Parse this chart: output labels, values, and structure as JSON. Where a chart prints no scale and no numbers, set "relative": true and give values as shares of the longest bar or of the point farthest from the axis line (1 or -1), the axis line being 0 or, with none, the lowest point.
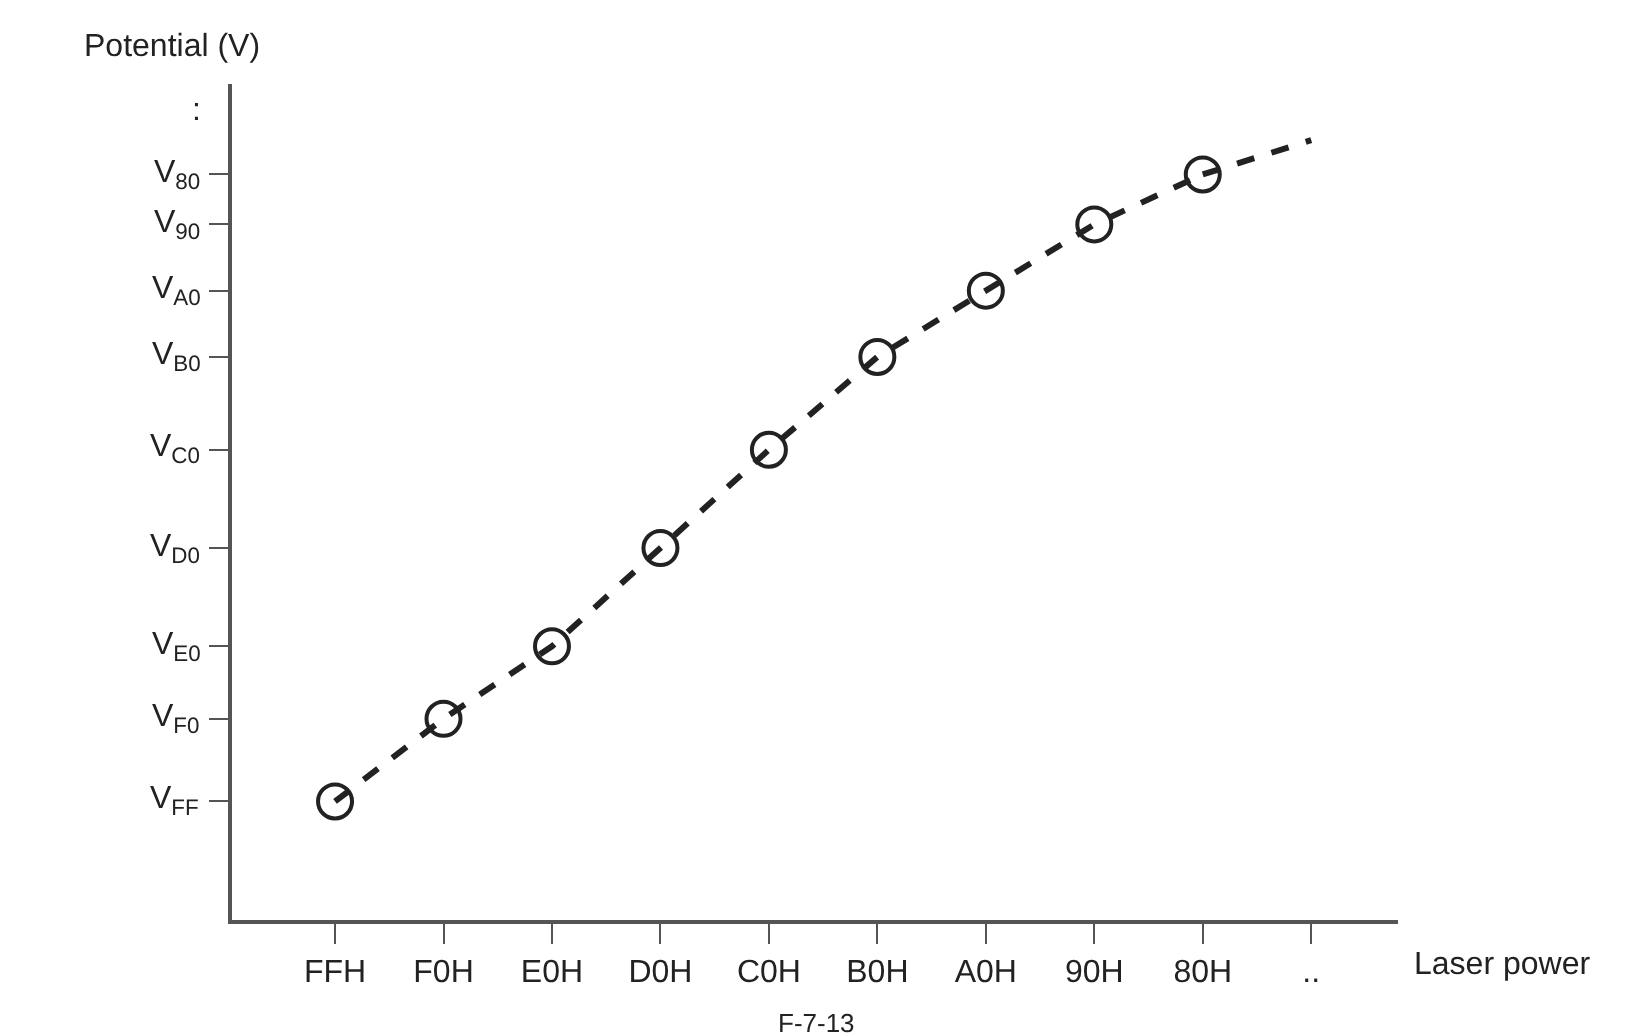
{
  "chart_data": {
    "type": "line",
    "xlabel": "Laser power",
    "ylabel": "Potential (V)",
    "relative": true,
    "categories": [
      "FFH",
      "F0H",
      "E0H",
      "D0H",
      "C0H",
      "B0H",
      "A0H",
      "90H",
      "80H",
      ".."
    ],
    "series": [
      {
        "color": "#222222",
        "values": [
          0.152,
          0.258,
          0.351,
          0.477,
          0.603,
          0.722,
          0.807,
          0.892,
          0.956,
          null
        ],
        "marker": "circle",
        "line_style": "dashed"
      },
      {
        "color": "#222222",
        "values": [
          null,
          null,
          null,
          null,
          null,
          null,
          null,
          null,
          0.956,
          1
        ],
        "marker": "none",
        "line_style": "dashed"
      }
    ],
    "annotations": [
      "V$_{FF}$",
      "V$_{F0}$",
      "V$_{E0}$",
      "V$_{D0}$",
      "V$_{C0}$",
      "V$_{B0}$",
      "V$_{A0}$",
      "V$_{90}$",
      "V$_{80}$",
      ":",
      "F-7-13"
    ]
  }
}
